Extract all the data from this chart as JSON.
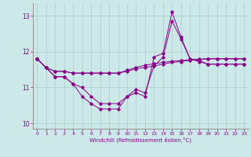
{
  "xlabel": "Windchill (Refroidissement éolien,°C)",
  "bg_color": "#cce8e8",
  "grid_color": "#aacccc",
  "line_color": "#880088",
  "x": [
    0,
    1,
    2,
    3,
    4,
    5,
    6,
    7,
    8,
    9,
    10,
    11,
    12,
    13,
    14,
    15,
    16,
    17,
    18,
    19,
    20,
    21,
    22,
    23
  ],
  "line1": [
    11.8,
    11.55,
    11.3,
    11.3,
    11.1,
    10.75,
    10.55,
    10.4,
    10.4,
    10.4,
    10.75,
    10.85,
    10.75,
    11.85,
    11.95,
    13.1,
    12.4,
    11.8,
    11.75,
    11.65,
    11.65,
    11.65,
    11.65,
    11.65
  ],
  "line2": [
    11.8,
    11.55,
    11.3,
    11.3,
    11.1,
    11.0,
    10.75,
    10.55,
    10.55,
    10.55,
    10.75,
    10.95,
    10.85,
    11.6,
    11.85,
    12.85,
    12.35,
    11.8,
    11.72,
    11.65,
    11.65,
    11.65,
    11.65,
    11.65
  ],
  "line3": [
    11.8,
    11.55,
    11.45,
    11.45,
    11.4,
    11.4,
    11.4,
    11.4,
    11.4,
    11.4,
    11.45,
    11.52,
    11.56,
    11.6,
    11.65,
    11.7,
    11.72,
    11.76,
    11.78,
    11.8,
    11.8,
    11.8,
    11.8,
    11.8
  ],
  "line4": [
    11.8,
    11.55,
    11.45,
    11.45,
    11.4,
    11.4,
    11.4,
    11.4,
    11.4,
    11.4,
    11.48,
    11.56,
    11.62,
    11.66,
    11.7,
    11.73,
    11.75,
    11.77,
    11.79,
    11.8,
    11.8,
    11.8,
    11.8,
    11.8
  ],
  "ylim": [
    9.85,
    13.35
  ],
  "yticks": [
    10,
    11,
    12,
    13
  ],
  "xlim": [
    -0.5,
    23.5
  ],
  "xticks": [
    0,
    1,
    2,
    3,
    4,
    5,
    6,
    7,
    8,
    9,
    10,
    11,
    12,
    13,
    14,
    15,
    16,
    17,
    18,
    19,
    20,
    21,
    22,
    23
  ]
}
